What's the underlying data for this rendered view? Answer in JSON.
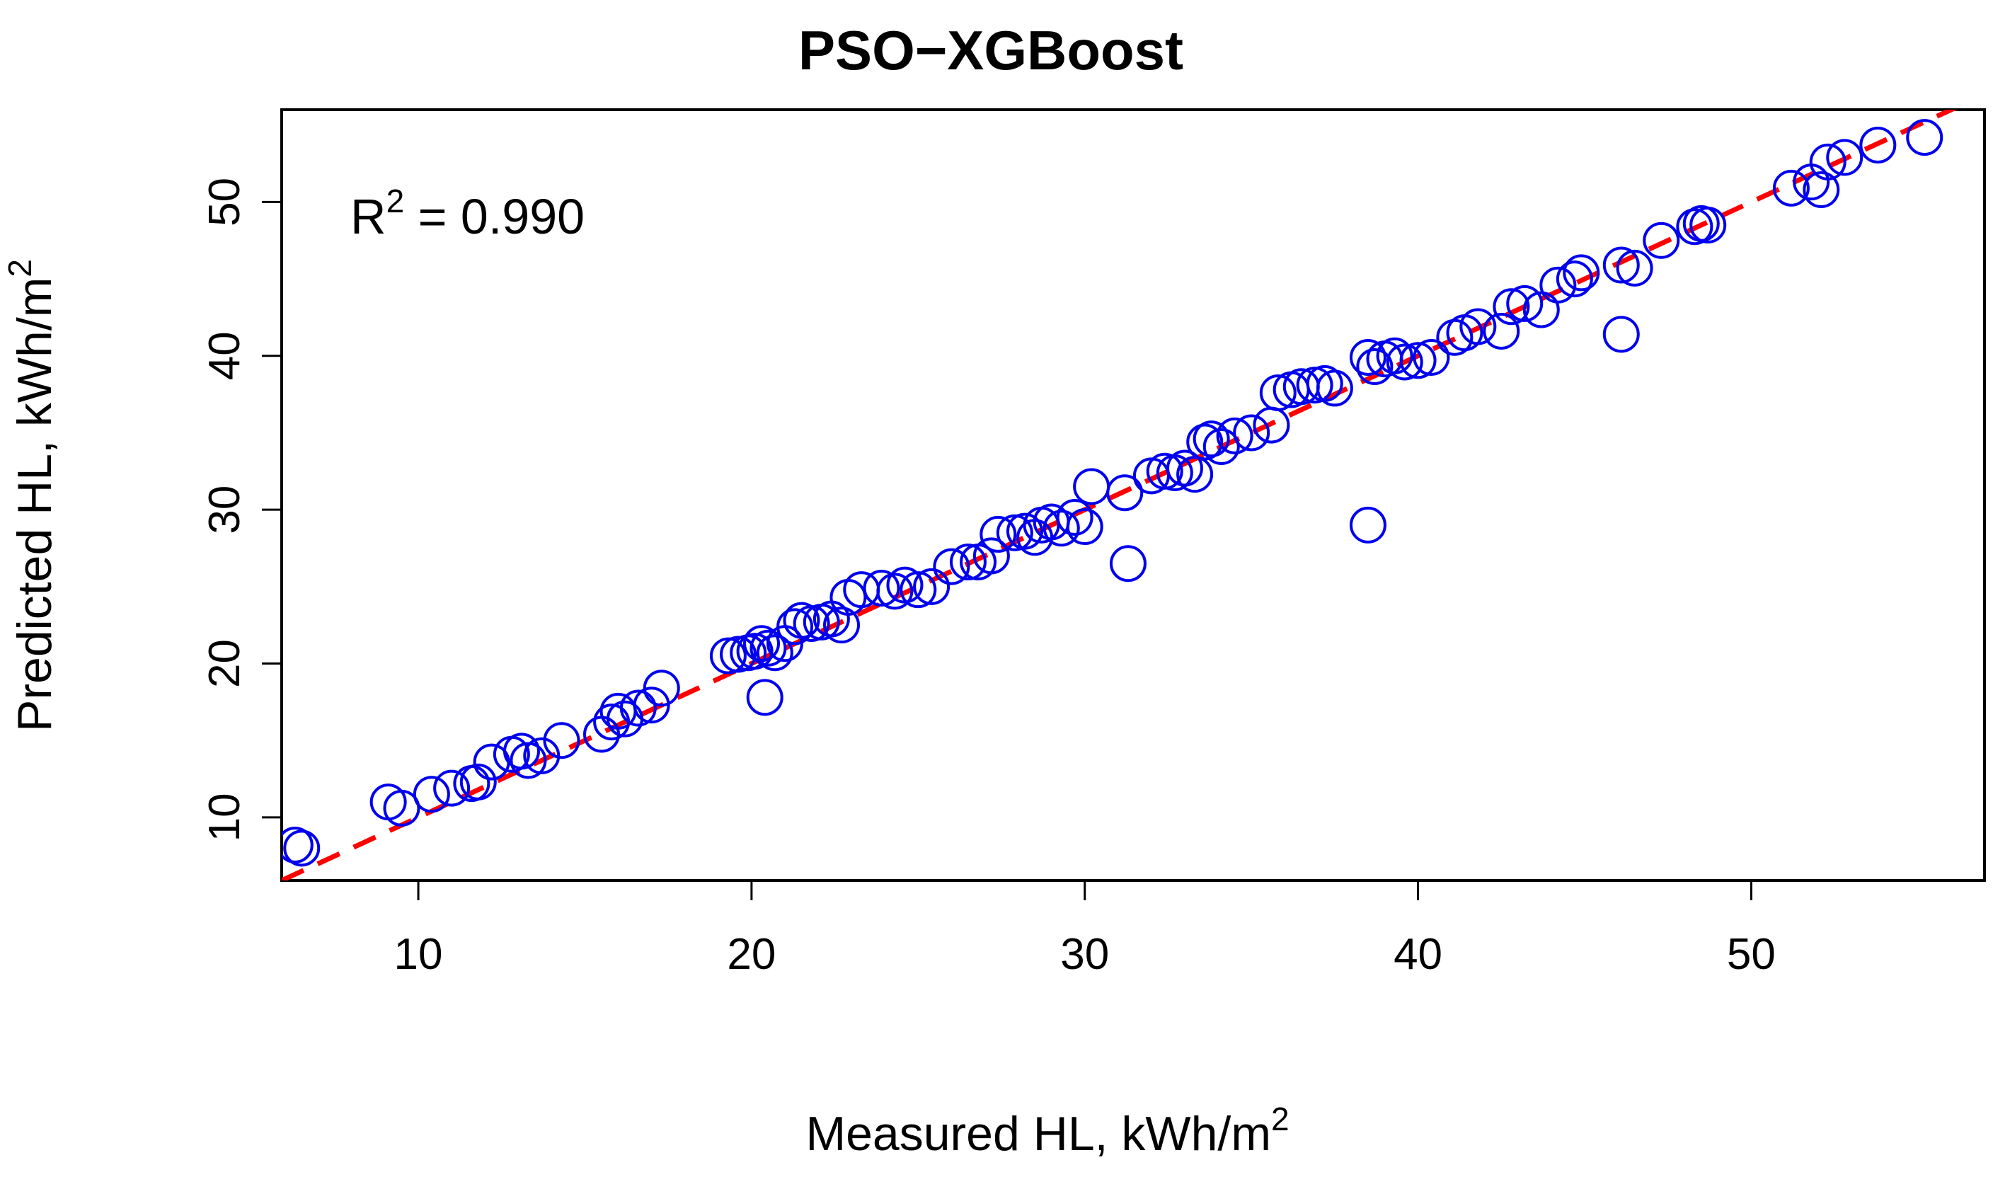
{
  "chart_data": {
    "type": "scatter",
    "title": "PSO−XGBoost",
    "xlabel": "Measured HL, kWh/m",
    "xlabel_sup": "2",
    "ylabel": "Predicted HL, kWh/m",
    "ylabel_sup": "2",
    "xlim": [
      5.9,
      57.0
    ],
    "ylim": [
      5.9,
      56.0
    ],
    "xticks": [
      10,
      20,
      30,
      40,
      50
    ],
    "yticks": [
      10,
      20,
      30,
      40,
      50
    ],
    "annotation": {
      "prefix": "R",
      "sup": "2",
      "text": " = 0.990"
    },
    "reference_line": {
      "slope": 1,
      "intercept": 0,
      "color": "#ff0000",
      "style": "dashed"
    },
    "point_color": "#0000ee",
    "x": [
      6.3,
      6.5,
      9.1,
      9.5,
      10.4,
      11.0,
      11.6,
      11.8,
      12.2,
      12.8,
      13.1,
      13.3,
      13.7,
      14.3,
      15.5,
      15.8,
      16.0,
      16.2,
      16.6,
      17.0,
      17.3,
      19.3,
      19.6,
      19.9,
      20.1,
      20.3,
      20.5,
      20.7,
      21.0,
      21.3,
      21.5,
      21.8,
      22.1,
      22.4,
      22.7,
      22.9,
      23.3,
      23.9,
      24.3,
      24.6,
      25.0,
      25.4,
      26.0,
      26.5,
      26.8,
      27.2,
      27.4,
      27.9,
      28.2,
      28.5,
      28.7,
      29.0,
      29.3,
      29.7,
      30.0,
      30.2,
      31.2,
      32.0,
      32.4,
      32.7,
      33.0,
      33.3,
      33.6,
      33.8,
      34.1,
      34.5,
      35.0,
      35.6,
      35.8,
      36.2,
      36.5,
      36.9,
      37.2,
      37.5,
      38.5,
      38.7,
      39.0,
      39.3,
      39.6,
      40.0,
      40.4,
      41.1,
      41.4,
      41.8,
      42.5,
      42.8,
      43.2,
      43.7,
      44.2,
      44.7,
      44.9,
      46.1,
      46.5,
      47.3,
      48.3,
      48.5,
      48.7,
      51.2,
      51.8,
      52.1,
      52.3,
      52.8,
      53.8,
      55.2,
      20.4,
      31.3,
      38.5,
      46.1
    ],
    "y": [
      8.2,
      8.0,
      11.0,
      10.6,
      11.5,
      11.9,
      12.2,
      12.3,
      13.6,
      14.1,
      14.3,
      13.7,
      14.0,
      15.0,
      15.4,
      16.2,
      16.9,
      16.4,
      17.1,
      17.3,
      18.4,
      20.5,
      20.6,
      20.7,
      20.8,
      21.3,
      21.0,
      20.7,
      21.3,
      22.4,
      22.8,
      22.6,
      22.7,
      22.9,
      22.5,
      24.3,
      24.8,
      24.9,
      24.7,
      25.1,
      24.8,
      25.0,
      26.3,
      26.6,
      26.6,
      27.0,
      28.4,
      28.5,
      28.6,
      28.2,
      29.0,
      29.2,
      28.8,
      29.5,
      28.9,
      31.5,
      31.1,
      32.2,
      32.5,
      32.4,
      32.7,
      32.3,
      34.4,
      34.6,
      34.1,
      34.8,
      35.0,
      35.5,
      37.6,
      37.8,
      38.0,
      38.1,
      38.2,
      37.9,
      39.9,
      39.3,
      39.8,
      40.0,
      39.6,
      39.7,
      39.9,
      41.2,
      41.5,
      41.9,
      41.6,
      43.2,
      43.4,
      43.0,
      44.6,
      45.0,
      45.4,
      45.9,
      45.7,
      47.5,
      48.4,
      48.6,
      48.5,
      50.9,
      51.3,
      50.8,
      52.6,
      52.9,
      53.7,
      54.2,
      17.8,
      26.5,
      29.0,
      41.4
    ]
  }
}
